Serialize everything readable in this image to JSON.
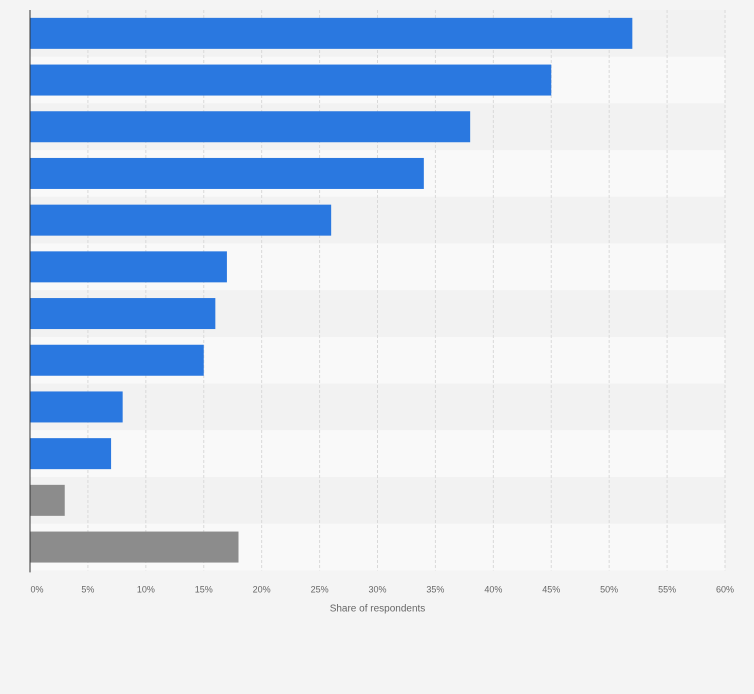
{
  "chart_data": {
    "type": "bar",
    "orientation": "horizontal",
    "title": "",
    "xlabel": "Share of respondents",
    "ylabel": "",
    "categories": [
      "",
      "",
      "",
      "",
      "",
      "",
      "",
      "",
      "",
      "",
      "",
      ""
    ],
    "values": [
      52,
      45,
      38,
      34,
      26,
      17,
      16,
      15,
      8,
      7,
      3,
      18
    ],
    "bar_colors": [
      "#2a78e0",
      "#2a78e0",
      "#2a78e0",
      "#2a78e0",
      "#2a78e0",
      "#2a78e0",
      "#2a78e0",
      "#2a78e0",
      "#2a78e0",
      "#2a78e0",
      "#8c8c8c",
      "#8c8c8c"
    ],
    "xlim": [
      0,
      60
    ],
    "x_ticks": [
      0,
      5,
      10,
      15,
      20,
      25,
      30,
      35,
      40,
      45,
      50,
      55,
      60
    ],
    "x_tick_labels": [
      "0%",
      "5%",
      "10%",
      "15%",
      "20%",
      "25%",
      "30%",
      "35%",
      "40%",
      "45%",
      "50%",
      "55%",
      "60%"
    ],
    "grid": true,
    "legend": "none",
    "colors": {
      "primary_bar": "#2a78e0",
      "secondary_bar": "#8c8c8c",
      "band_dark": "#f2f2f2",
      "band_light": "#f9f9f9",
      "gridline": "#d9d9d9",
      "axis": "#333333"
    }
  }
}
